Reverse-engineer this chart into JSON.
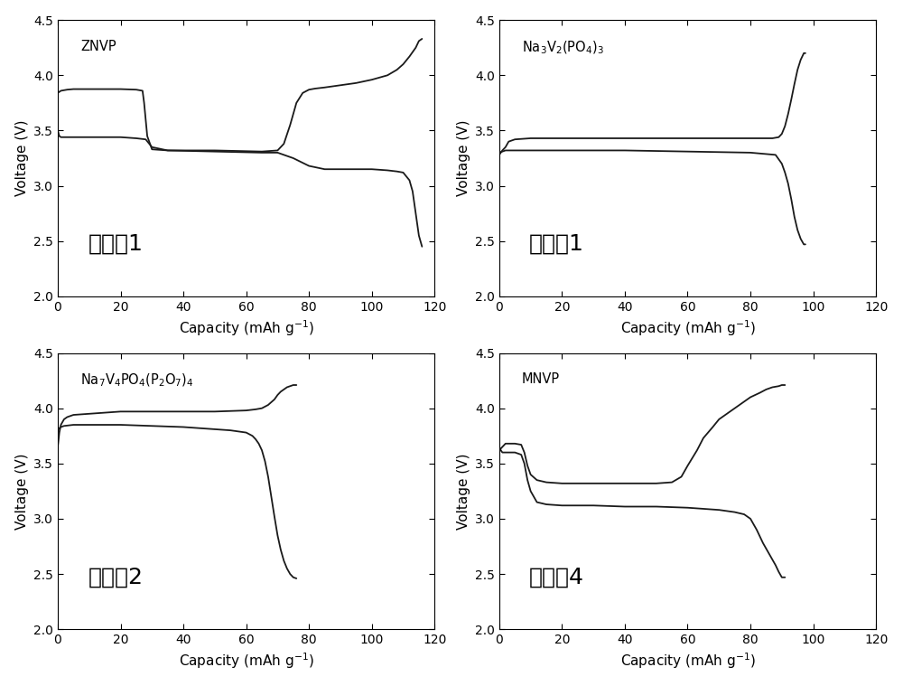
{
  "background_color": "#ffffff",
  "line_color": "#1a1a1a",
  "line_width": 1.3,
  "subplots": [
    {
      "label": "ZNVP",
      "subtitle": "实施例1",
      "xlabel": "Capacity (mAh g$^{-1}$)",
      "ylabel": "Voltage (V)",
      "xlim": [
        0,
        120
      ],
      "ylim": [
        2.0,
        4.5
      ],
      "xticks": [
        0,
        20,
        40,
        60,
        80,
        100,
        120
      ],
      "yticks": [
        2.0,
        2.5,
        3.0,
        3.5,
        4.0,
        4.5
      ]
    },
    {
      "label": "$\\mathrm{Na_3V_2(PO_4)_3}$",
      "subtitle": "对比例1",
      "xlabel": "Capacity (mAh g$^{-1}$)",
      "ylabel": "Voltage (V)",
      "xlim": [
        0,
        120
      ],
      "ylim": [
        2.0,
        4.5
      ],
      "xticks": [
        0,
        20,
        40,
        60,
        80,
        100,
        120
      ],
      "yticks": [
        2.0,
        2.5,
        3.0,
        3.5,
        4.0,
        4.5
      ]
    },
    {
      "label": "$\\mathrm{Na_7V_4PO_4(P_2O_7)_4}$",
      "subtitle": "对比例2",
      "xlabel": "Capacity (mAh g$^{-1}$)",
      "ylabel": "Voltage (V)",
      "xlim": [
        0,
        120
      ],
      "ylim": [
        2.0,
        4.5
      ],
      "xticks": [
        0,
        20,
        40,
        60,
        80,
        100,
        120
      ],
      "yticks": [
        2.0,
        2.5,
        3.0,
        3.5,
        4.0,
        4.5
      ]
    },
    {
      "label": "MNVP",
      "subtitle": "对比例4",
      "xlabel": "Capacity (mAh g$^{-1}$)",
      "ylabel": "Voltage (V)",
      "xlim": [
        0,
        120
      ],
      "ylim": [
        2.0,
        4.5
      ],
      "xticks": [
        0,
        20,
        40,
        60,
        80,
        100,
        120
      ],
      "yticks": [
        2.0,
        2.5,
        3.0,
        3.5,
        4.0,
        4.5
      ]
    }
  ]
}
